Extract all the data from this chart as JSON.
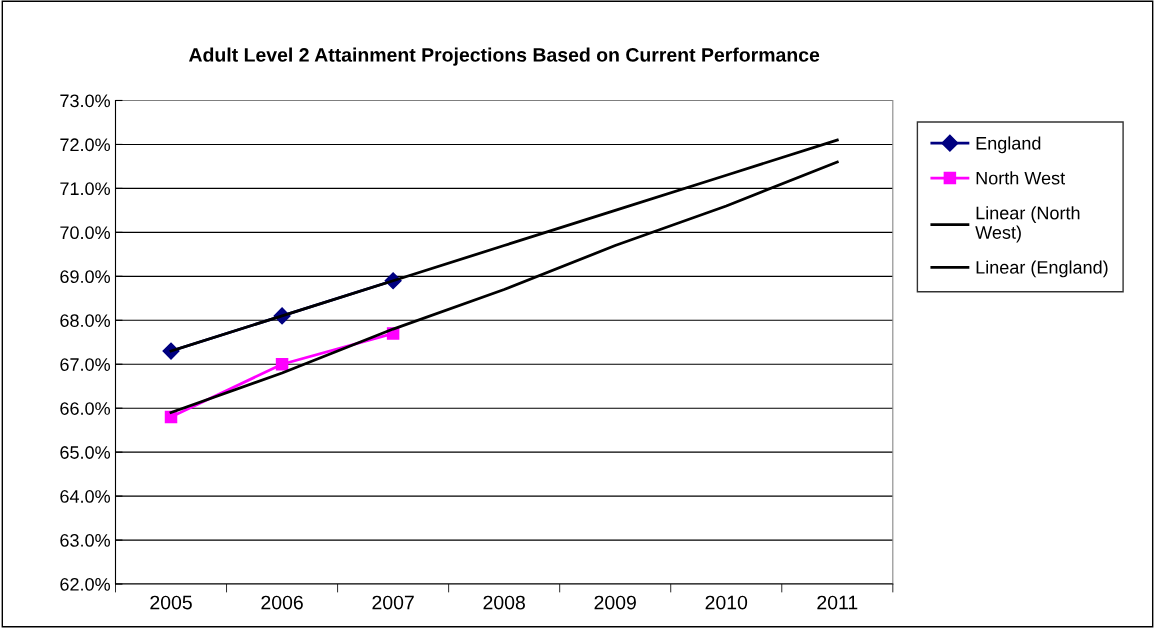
{
  "chart_data": {
    "type": "line",
    "title": "Adult Level 2 Attainment Projections Based on Current Performance",
    "categories": [
      "2005",
      "2006",
      "2007",
      "2008",
      "2009",
      "2010",
      "2011"
    ],
    "series": [
      {
        "name": "England",
        "color": "#000080",
        "marker": "diamond",
        "values": [
          67.3,
          68.1,
          68.9,
          null,
          null,
          null,
          null
        ]
      },
      {
        "name": "North West",
        "color": "#ff00ff",
        "marker": "square",
        "values": [
          65.8,
          67.0,
          67.7,
          null,
          null,
          null,
          null
        ]
      },
      {
        "name": "Linear (North West)",
        "color": "#000000",
        "marker": "none",
        "values": [
          65.9,
          66.8,
          67.8,
          68.7,
          69.7,
          70.6,
          71.6
        ]
      },
      {
        "name": "Linear (England)",
        "color": "#000000",
        "marker": "none",
        "values": [
          67.3,
          68.1,
          68.9,
          69.7,
          70.5,
          71.3,
          72.1
        ]
      }
    ],
    "ylim": [
      62,
      73
    ],
    "yticks": [
      {
        "value": 62,
        "label": "62.0%"
      },
      {
        "value": 63,
        "label": "63.0%"
      },
      {
        "value": 64,
        "label": "64.0%"
      },
      {
        "value": 65,
        "label": "65.0%"
      },
      {
        "value": 66,
        "label": "66.0%"
      },
      {
        "value": 67,
        "label": "67.0%"
      },
      {
        "value": 68,
        "label": "68.0%"
      },
      {
        "value": 69,
        "label": "69.0%"
      },
      {
        "value": 70,
        "label": "70.0%"
      },
      {
        "value": 71,
        "label": "71.0%"
      },
      {
        "value": 72,
        "label": "72.0%"
      },
      {
        "value": 73,
        "label": "73.0%"
      }
    ],
    "grid": "y",
    "legend": "right",
    "line_style": "solid"
  }
}
